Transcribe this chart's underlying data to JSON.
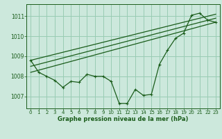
{
  "title": "Graphe pression niveau de la mer (hPa)",
  "background_color": "#cce8dc",
  "grid_color": "#99ccb3",
  "line_color": "#1a5c1a",
  "xlim": [
    -0.5,
    23.5
  ],
  "ylim": [
    1006.4,
    1011.6
  ],
  "yticks": [
    1007,
    1008,
    1009,
    1010,
    1011
  ],
  "xticks": [
    0,
    1,
    2,
    3,
    4,
    5,
    6,
    7,
    8,
    9,
    10,
    11,
    12,
    13,
    14,
    15,
    16,
    17,
    18,
    19,
    20,
    21,
    22,
    23
  ],
  "series1": {
    "x": [
      0,
      1,
      2,
      3,
      4,
      5,
      6,
      7,
      8,
      9,
      10,
      11,
      12,
      13,
      14,
      15,
      16,
      17,
      18,
      19,
      20,
      21,
      22,
      23
    ],
    "y": [
      1008.8,
      1008.2,
      1008.0,
      1007.8,
      1007.45,
      1007.75,
      1007.7,
      1008.1,
      1008.0,
      1008.0,
      1007.75,
      1006.65,
      1006.65,
      1007.35,
      1007.05,
      1007.1,
      1008.6,
      1009.3,
      1009.9,
      1010.15,
      1011.05,
      1011.15,
      1010.8,
      1010.7
    ]
  },
  "line2": {
    "x": [
      0,
      23
    ],
    "y": [
      1008.2,
      1010.7
    ]
  },
  "line3": {
    "x": [
      0,
      23
    ],
    "y": [
      1008.5,
      1010.9
    ]
  },
  "line4": {
    "x": [
      0,
      23
    ],
    "y": [
      1008.8,
      1011.1
    ]
  }
}
